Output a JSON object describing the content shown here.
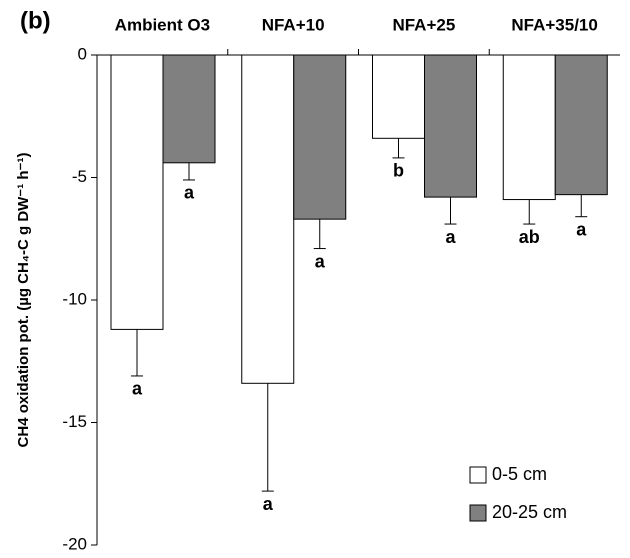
{
  "chart_data": {
    "type": "bar",
    "panel_label": "(b)",
    "ylabel": "CH4 oxidation pot. (µg CH₄-C g DW⁻¹ h⁻¹)",
    "categories": [
      "Ambient O3",
      "NFA+10",
      "NFA+25",
      "NFA+35/10"
    ],
    "series": [
      {
        "name": "0-5 cm",
        "color": "#ffffff",
        "values": [
          -11.2,
          -13.4,
          -3.4,
          -5.9
        ],
        "errors": [
          1.9,
          4.4,
          0.8,
          1.0
        ],
        "letters": [
          "a",
          "a",
          "b",
          "ab"
        ]
      },
      {
        "name": "20-25 cm",
        "color": "#808080",
        "values": [
          -4.4,
          -6.7,
          -5.8,
          -5.7
        ],
        "errors": [
          0.7,
          1.2,
          1.1,
          0.9
        ],
        "letters": [
          "a",
          "a",
          "a",
          "a"
        ]
      }
    ],
    "ylim": [
      -20,
      0
    ],
    "yticks": [
      0,
      -5,
      -10,
      -15,
      -20
    ],
    "legend": "lower right"
  }
}
